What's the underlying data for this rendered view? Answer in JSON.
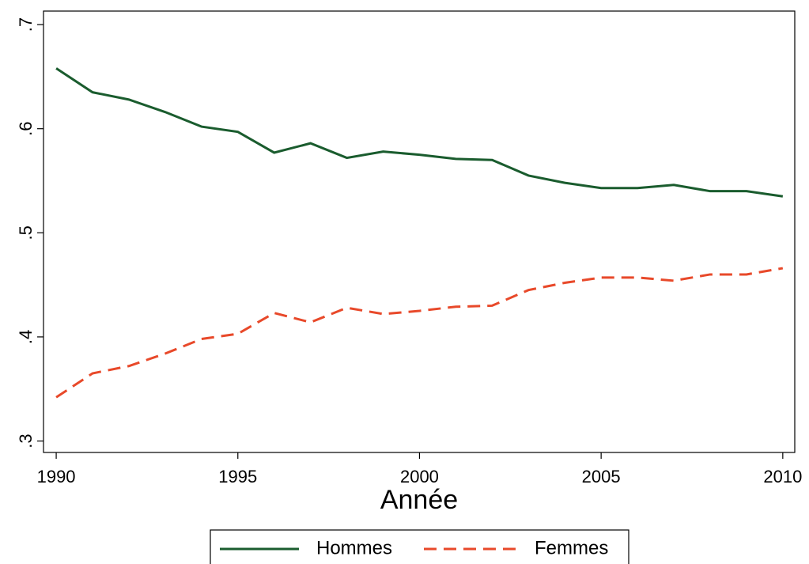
{
  "chart_data": {
    "type": "line",
    "x_label": "Année",
    "x": [
      1990,
      1991,
      1992,
      1993,
      1994,
      1995,
      1996,
      1997,
      1998,
      1999,
      2000,
      2001,
      2002,
      2003,
      2004,
      2005,
      2006,
      2007,
      2008,
      2009,
      2010
    ],
    "series": [
      {
        "name": "Hommes",
        "color": "#1a5c2e",
        "dash": "solid",
        "values": [
          0.658,
          0.635,
          0.628,
          0.616,
          0.602,
          0.597,
          0.577,
          0.586,
          0.572,
          0.578,
          0.575,
          0.571,
          0.57,
          0.555,
          0.548,
          0.543,
          0.543,
          0.546,
          0.54,
          0.54,
          0.535
        ]
      },
      {
        "name": "Femmes",
        "color": "#e8492a",
        "dash": "dashed",
        "values": [
          0.342,
          0.365,
          0.372,
          0.384,
          0.398,
          0.403,
          0.423,
          0.414,
          0.428,
          0.422,
          0.425,
          0.429,
          0.43,
          0.445,
          0.452,
          0.457,
          0.457,
          0.454,
          0.46,
          0.46,
          0.466
        ]
      }
    ],
    "xlim": [
      1989.65,
      2010.33
    ],
    "xticks": [
      1990,
      1995,
      2000,
      2005,
      2010
    ],
    "ylim": [
      0.289,
      0.713
    ],
    "yticks": [
      {
        "value": 0.3,
        "label": ".3"
      },
      {
        "value": 0.4,
        "label": ".4"
      },
      {
        "value": 0.5,
        "label": ".5"
      },
      {
        "value": 0.6,
        "label": ".6"
      },
      {
        "value": 0.7,
        "label": ".7"
      }
    ],
    "grid": false,
    "legend": "bottom"
  }
}
